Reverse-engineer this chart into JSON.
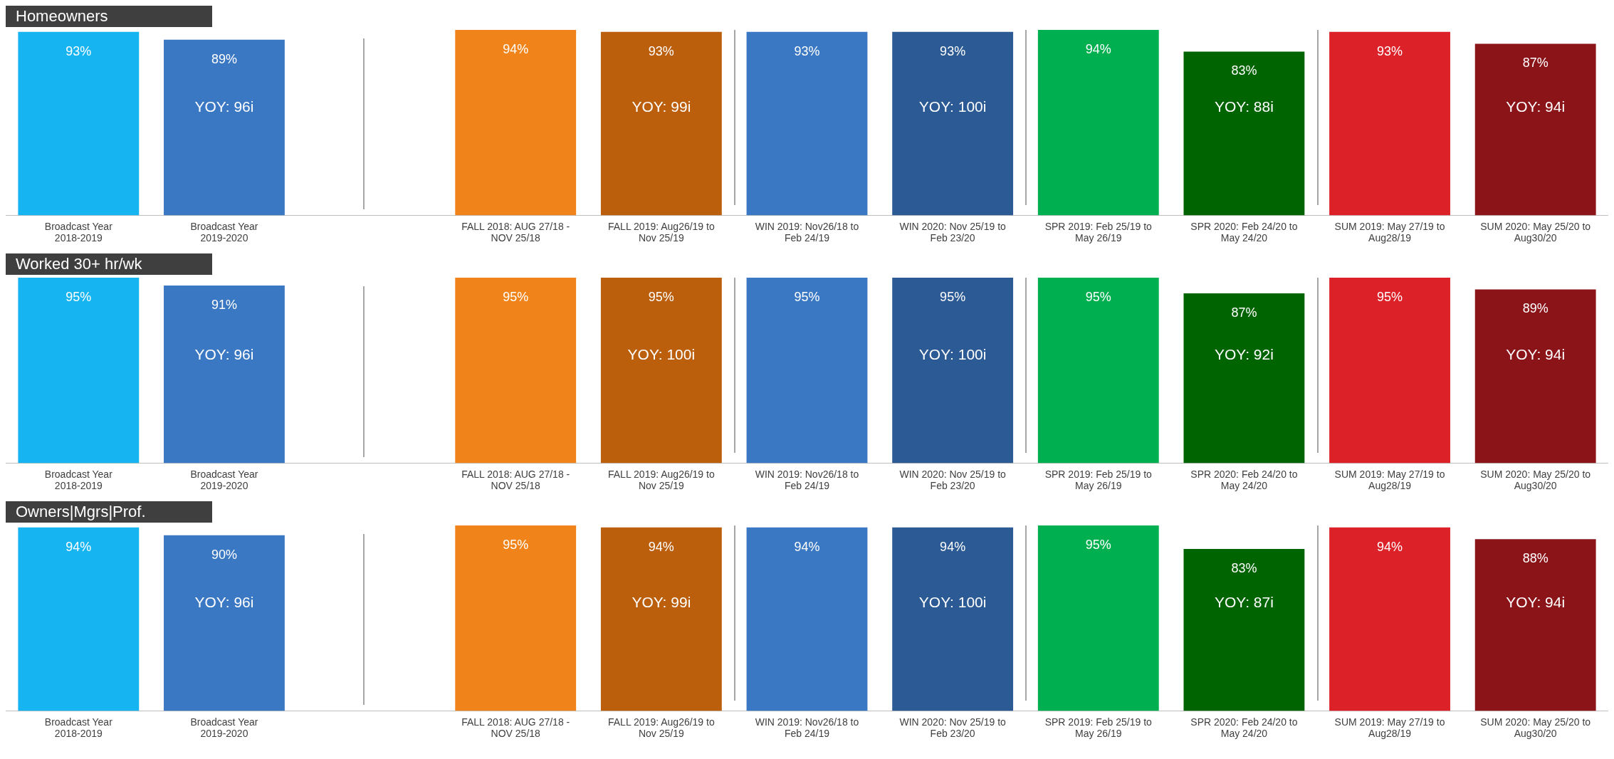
{
  "chart_data": [
    {
      "type": "bar",
      "title": "Homeowners",
      "categories": [
        "Broadcast Year 2018-2019",
        "Broadcast Year 2019-2020",
        null,
        "FALL 2018: AUG 27/18 - NOV 25/18",
        "FALL 2019: Aug26/19 to Nov 25/19",
        "WIN 2019: Nov26/18 to Feb 24/19",
        "WIN 2020: Nov 25/19 to Feb 23/20",
        "SPR 2019: Feb 25/19 to May 26/19",
        "SPR 2020: Feb 24/20 to May 24/20",
        "SUM 2019: May 27/19 to Aug28/19",
        "SUM 2020: May 25/20 to Aug30/20"
      ],
      "values": [
        93,
        89,
        null,
        94,
        93,
        93,
        93,
        94,
        83,
        93,
        87
      ],
      "value_labels": [
        "93%",
        "89%",
        null,
        "94%",
        "93%",
        "93%",
        "93%",
        "94%",
        "83%",
        "93%",
        "87%"
      ],
      "colors": [
        "#16b4f0",
        "#3b78c3",
        "#ffffff",
        "#f0841a",
        "#bb5f0d",
        "#3b78c3",
        "#2c5a94",
        "#00b050",
        "#006400",
        "#dc2228",
        "#8b1419"
      ],
      "annotations": [
        "YOY: 96i",
        "YOY: 99i",
        "YOY: 100i",
        "YOY: 88i",
        "YOY: 94i"
      ]
    },
    {
      "type": "bar",
      "title": "Worked 30+ hr/wk",
      "categories": [
        "Broadcast Year 2018-2019",
        "Broadcast Year 2019-2020",
        null,
        "FALL 2018: AUG 27/18 - NOV 25/18",
        "FALL 2019: Aug26/19 to Nov 25/19",
        "WIN 2019: Nov26/18 to Feb 24/19",
        "WIN 2020: Nov 25/19 to Feb 23/20",
        "SPR 2019: Feb 25/19 to May 26/19",
        "SPR 2020: Feb 24/20 to May 24/20",
        "SUM 2019: May 27/19 to Aug28/19",
        "SUM 2020: May 25/20 to Aug30/20"
      ],
      "values": [
        95,
        91,
        null,
        95,
        95,
        95,
        95,
        95,
        87,
        95,
        89
      ],
      "value_labels": [
        "95%",
        "91%",
        null,
        "95%",
        "95%",
        "95%",
        "95%",
        "95%",
        "87%",
        "95%",
        "89%"
      ],
      "colors": [
        "#16b4f0",
        "#3b78c3",
        "#ffffff",
        "#f0841a",
        "#bb5f0d",
        "#3b78c3",
        "#2c5a94",
        "#00b050",
        "#006400",
        "#dc2228",
        "#8b1419"
      ],
      "annotations": [
        "YOY: 96i",
        "YOY: 100i",
        "YOY: 100i",
        "YOY: 92i",
        "YOY: 94i"
      ]
    },
    {
      "type": "bar",
      "title": "Owners|Mgrs|Prof.",
      "categories": [
        "Broadcast Year 2018-2019",
        "Broadcast Year 2019-2020",
        null,
        "FALL 2018: AUG 27/18 - NOV 25/18",
        "FALL 2019: Aug26/19 to Nov 25/19",
        "WIN 2019: Nov26/18 to Feb 24/19",
        "WIN 2020: Nov 25/19 to Feb 23/20",
        "SPR 2019: Feb 25/19 to May 26/19",
        "SPR 2020: Feb 24/20 to May 24/20",
        "SUM 2019: May 27/19 to Aug28/19",
        "SUM 2020: May 25/20 to Aug30/20"
      ],
      "values": [
        94,
        90,
        null,
        95,
        94,
        94,
        94,
        95,
        83,
        94,
        88
      ],
      "value_labels": [
        "94%",
        "90%",
        null,
        "95%",
        "94%",
        "94%",
        "94%",
        "95%",
        "83%",
        "94%",
        "88%"
      ],
      "colors": [
        "#16b4f0",
        "#3b78c3",
        "#ffffff",
        "#f0841a",
        "#bb5f0d",
        "#3b78c3",
        "#2c5a94",
        "#00b050",
        "#006400",
        "#dc2228",
        "#8b1419"
      ],
      "annotations": [
        "YOY: 96i",
        "YOY: 99i",
        "YOY: 100i",
        "YOY: 87i",
        "YOY: 94i"
      ]
    }
  ]
}
